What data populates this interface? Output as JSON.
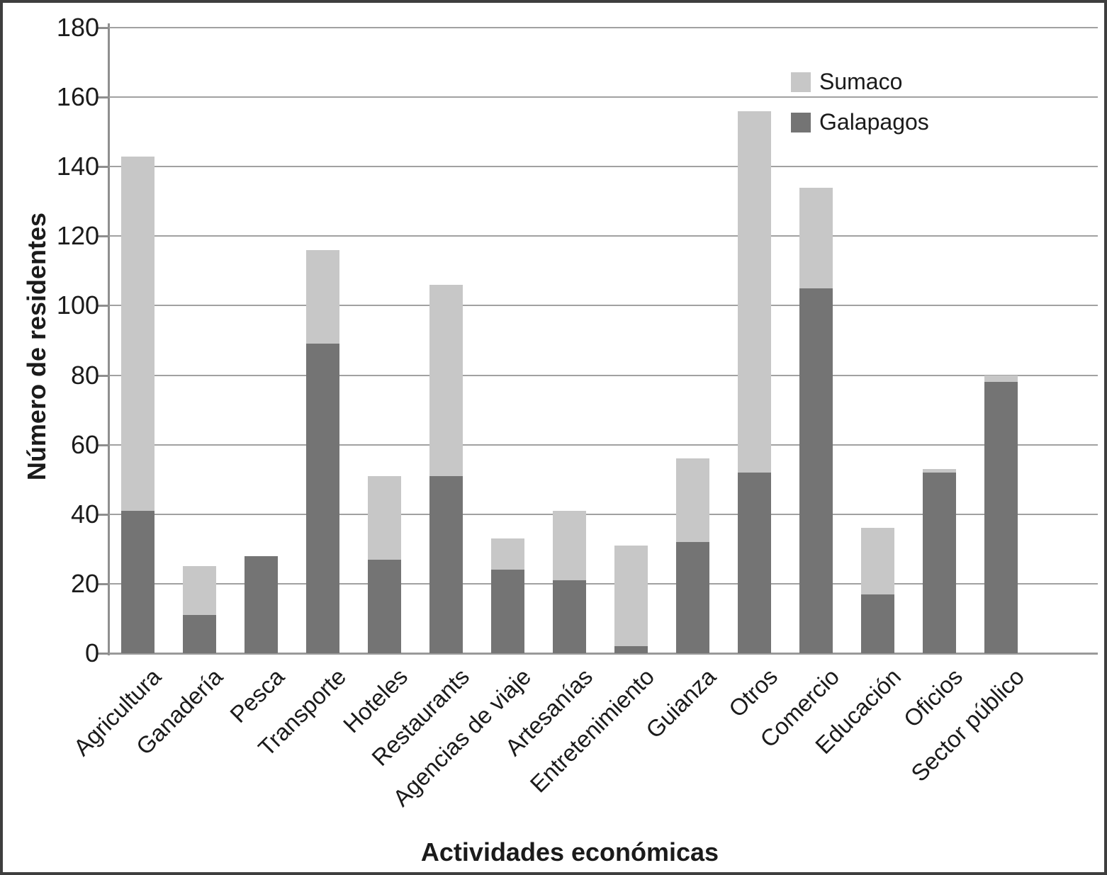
{
  "figure": {
    "background": "#ffffff",
    "border_color": "#3e3e3e",
    "text_color": "#1b1b1b",
    "gridline_color": "#a1a1a1",
    "axis_line_color": "#8f8f8f"
  },
  "chart_data": {
    "type": "bar",
    "stacked": true,
    "orientation": "vertical",
    "title": "",
    "xlabel": "Actividades económicas",
    "ylabel": "Número de residentes",
    "ylim": [
      0,
      180
    ],
    "ytick_interval": 20,
    "yticks": [
      0,
      20,
      40,
      60,
      80,
      100,
      120,
      140,
      160,
      180
    ],
    "grid": "horizontal gridlines at every y tick",
    "legend": {
      "position": "top-right inside plot area",
      "entries": [
        "Sumaco",
        "Galapagos"
      ]
    },
    "categories": [
      "Agricultura",
      "Ganadería",
      "Pesca",
      "Transporte",
      "Hoteles",
      "Restaurants",
      "Agencias de viaje",
      "Artesanías",
      "Entretenimiento",
      "Guianza",
      "Otros",
      "Comercio",
      "Educación",
      "Oficios",
      "Sector público"
    ],
    "series": [
      {
        "name": "Sumaco",
        "color": "#c7c7c7",
        "stack_position": "top",
        "values": [
          102,
          14,
          0,
          27,
          24,
          55,
          9,
          20,
          29,
          24,
          104,
          29,
          19,
          1,
          2
        ]
      },
      {
        "name": "Galapagos",
        "color": "#747474",
        "stack_position": "bottom",
        "values": [
          41,
          11,
          28,
          89,
          27,
          51,
          24,
          21,
          2,
          32,
          52,
          105,
          17,
          52,
          78
        ]
      }
    ],
    "stack_totals": [
      143,
      25,
      28,
      116,
      51,
      106,
      33,
      41,
      31,
      56,
      156,
      134,
      36,
      53,
      80
    ]
  }
}
